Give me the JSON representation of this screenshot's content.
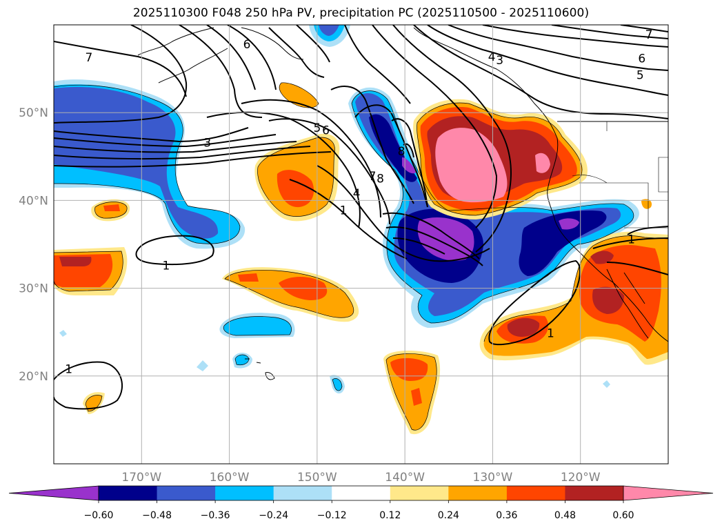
{
  "title": "2025110300 F048 250 hPa PV, precipitation PC (2025110500 - 2025110600)",
  "map": {
    "lon_range": [
      -180,
      -110
    ],
    "lat_range": [
      10,
      60
    ],
    "lon_ticks": [
      {
        "value": -170,
        "label": "170°W"
      },
      {
        "value": -160,
        "label": "160°W"
      },
      {
        "value": -150,
        "label": "150°W"
      },
      {
        "value": -140,
        "label": "140°W"
      },
      {
        "value": -130,
        "label": "130°W"
      },
      {
        "value": -120,
        "label": "120°W"
      }
    ],
    "lat_ticks": [
      {
        "value": 20,
        "label": "20°N"
      },
      {
        "value": 30,
        "label": "30°N"
      },
      {
        "value": 40,
        "label": "40°N"
      },
      {
        "value": 50,
        "label": "50°N"
      }
    ],
    "grid": true,
    "tick_label_color": "#808080"
  },
  "contour_labels": [
    {
      "text": "7",
      "lon": -176,
      "lat": 56.3
    },
    {
      "text": "6",
      "lon": -158,
      "lat": 57.8
    },
    {
      "text": "3",
      "lon": -162.5,
      "lat": 46.6
    },
    {
      "text": "5",
      "lon": -150,
      "lat": 48.3
    },
    {
      "text": "6",
      "lon": -149,
      "lat": 48.0
    },
    {
      "text": "7",
      "lon": -143.7,
      "lat": 42.8
    },
    {
      "text": "8",
      "lon": -142.8,
      "lat": 42.5
    },
    {
      "text": "4",
      "lon": -145.5,
      "lat": 40.8
    },
    {
      "text": "1",
      "lon": -147.0,
      "lat": 38.9
    },
    {
      "text": "8",
      "lon": -140.4,
      "lat": 45.6
    },
    {
      "text": "1",
      "lon": -167.2,
      "lat": 32.6
    },
    {
      "text": "1",
      "lon": -123.4,
      "lat": 24.9
    },
    {
      "text": "1",
      "lon": -178.3,
      "lat": 20.8
    },
    {
      "text": "1",
      "lon": -114.2,
      "lat": 35.6
    },
    {
      "text": "4",
      "lon": -130.1,
      "lat": 56.4
    },
    {
      "text": "3",
      "lon": -129.2,
      "lat": 56.0
    },
    {
      "text": "6",
      "lon": -113.0,
      "lat": 56.2
    },
    {
      "text": "5",
      "lon": -113.2,
      "lat": 54.3
    },
    {
      "text": "7",
      "lon": -112.2,
      "lat": 58.9
    }
  ],
  "colorbar": {
    "levels": [
      -0.72,
      -0.6,
      -0.48,
      -0.36,
      -0.24,
      -0.12,
      0.12,
      0.24,
      0.36,
      0.48,
      0.6,
      0.72
    ],
    "tick_labels": [
      "−0.60",
      "−0.48",
      "−0.36",
      "−0.24",
      "−0.12",
      "0.12",
      "0.24",
      "0.36",
      "0.48",
      "0.60"
    ],
    "colors": [
      "#9932CC",
      "#00008B",
      "#3A5ACD",
      "#00BFFF",
      "#ADE0F7",
      "#FFFFFF",
      "#FFE88A",
      "#FFA500",
      "#FF4500",
      "#B22222",
      "#FF88AA"
    ],
    "extend": "both"
  },
  "field_colors": {
    "dark_purple": "#9932CC",
    "navy": "#00008B",
    "royal_blue": "#3A5ACD",
    "sky_blue": "#00BFFF",
    "light_blue": "#ADE0F7",
    "light_yellow": "#FFE88A",
    "orange": "#FFA500",
    "orange_red": "#FF4500",
    "firebrick": "#B22222",
    "pink": "#FF88AA",
    "contour": "#000000"
  }
}
